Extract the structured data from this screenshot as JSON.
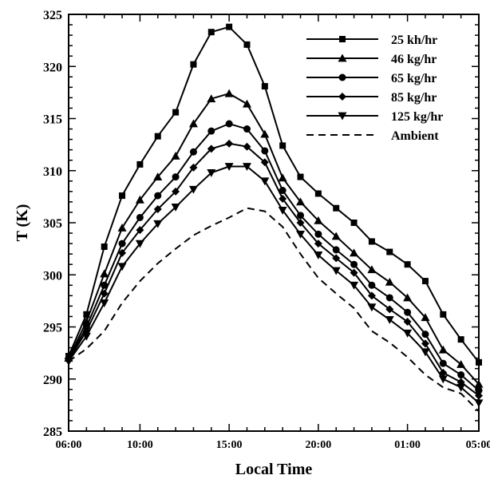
{
  "chart_data": {
    "type": "line",
    "xlabel": "Local Time",
    "ylabel": "T (K)",
    "ylim": [
      285,
      325
    ],
    "yticks": [
      285,
      290,
      295,
      300,
      305,
      310,
      315,
      320,
      325
    ],
    "xlim": [
      6,
      29
    ],
    "xticks": [
      {
        "value": 6,
        "label": "06:00"
      },
      {
        "value": 10,
        "label": "10:00"
      },
      {
        "value": 15,
        "label": "15:00"
      },
      {
        "value": 20,
        "label": "20:00"
      },
      {
        "value": 25,
        "label": "01:00"
      },
      {
        "value": 29,
        "label": "05:00"
      }
    ],
    "x": [
      6,
      7,
      8,
      9,
      10,
      11,
      12,
      13,
      14,
      15,
      16,
      17,
      18,
      19,
      20,
      21,
      22,
      23,
      24,
      25,
      26,
      27,
      28,
      29
    ],
    "legend_position": "top-right",
    "series": [
      {
        "name": "25 kh/hr",
        "marker": "square",
        "dashed": false,
        "values": [
          292.2,
          296.2,
          302.7,
          307.6,
          310.6,
          313.3,
          315.6,
          320.2,
          323.3,
          323.8,
          322.1,
          318.1,
          312.4,
          309.4,
          307.8,
          306.4,
          305.0,
          303.2,
          302.2,
          301.0,
          299.4,
          296.2,
          293.8,
          291.6
        ]
      },
      {
        "name": "46 kg/hr",
        "marker": "triangle-up",
        "dashed": false,
        "values": [
          292.0,
          295.5,
          300.1,
          304.5,
          307.2,
          309.4,
          311.4,
          314.5,
          316.9,
          317.4,
          316.4,
          313.5,
          309.3,
          307.0,
          305.2,
          303.7,
          302.1,
          300.5,
          299.3,
          297.8,
          295.9,
          292.8,
          291.4,
          289.5
        ]
      },
      {
        "name": "65 kg/hr",
        "marker": "circle",
        "dashed": false,
        "values": [
          291.9,
          295.0,
          299.0,
          303.0,
          305.5,
          307.6,
          309.4,
          311.8,
          313.8,
          314.5,
          314.0,
          311.9,
          308.1,
          305.7,
          303.9,
          302.4,
          301.0,
          299.0,
          297.8,
          296.4,
          294.3,
          291.5,
          290.4,
          288.9
        ]
      },
      {
        "name": "85 kg/hr",
        "marker": "diamond",
        "dashed": false,
        "values": [
          291.8,
          294.6,
          298.2,
          302.1,
          304.3,
          306.3,
          308.0,
          310.3,
          312.1,
          312.6,
          312.3,
          310.8,
          307.3,
          305.0,
          303.0,
          301.6,
          300.2,
          298.0,
          296.7,
          295.5,
          293.4,
          290.6,
          289.7,
          288.4
        ]
      },
      {
        "name": "125 kg/hr",
        "marker": "triangle-down",
        "dashed": false,
        "values": [
          291.7,
          294.1,
          297.3,
          300.8,
          303.0,
          304.9,
          306.5,
          308.2,
          309.8,
          310.4,
          310.4,
          309.0,
          306.2,
          303.9,
          301.9,
          300.4,
          299.0,
          296.9,
          295.7,
          294.4,
          292.6,
          290.0,
          289.2,
          287.7
        ]
      },
      {
        "name": "Ambient",
        "marker": "none",
        "dashed": true,
        "values": [
          291.7,
          292.9,
          294.6,
          297.3,
          299.4,
          301.1,
          302.5,
          303.8,
          304.7,
          305.5,
          306.4,
          306.1,
          304.6,
          302.0,
          299.7,
          298.2,
          296.8,
          294.6,
          293.5,
          292.1,
          290.4,
          289.2,
          288.6,
          286.9
        ]
      }
    ]
  },
  "colors": {
    "axis": "#000000",
    "series": "#000000",
    "background": "#ffffff"
  }
}
